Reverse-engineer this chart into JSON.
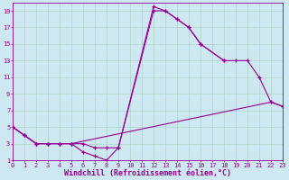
{
  "xlabel": "Windchill (Refroidissement éolien,°C)",
  "bg_color": "#cde8f0",
  "line_color": "#990099",
  "xmin": 0,
  "xmax": 23,
  "ymin": 1,
  "ymax": 20,
  "xticks": [
    0,
    1,
    2,
    3,
    4,
    5,
    6,
    7,
    8,
    9,
    10,
    11,
    12,
    13,
    14,
    15,
    16,
    17,
    18,
    19,
    20,
    21,
    22,
    23
  ],
  "yticks": [
    1,
    3,
    5,
    7,
    9,
    11,
    13,
    15,
    17,
    19
  ],
  "grid_color": "#b0d4c8",
  "tick_fontsize": 5.0,
  "label_fontsize": 6.0,
  "curve1_x": [
    0,
    1,
    2,
    3,
    4,
    5,
    6,
    7,
    8,
    9,
    12,
    13,
    14,
    15,
    16,
    18
  ],
  "curve1_y": [
    5,
    4,
    3,
    3,
    3,
    3,
    2,
    1.5,
    1,
    2.5,
    19.5,
    19,
    18,
    17,
    15,
    13
  ],
  "curve2_x": [
    0,
    1,
    2,
    3,
    4,
    5,
    6,
    7,
    8,
    9,
    12,
    13,
    14,
    15,
    16,
    18,
    19,
    20,
    21,
    22,
    23
  ],
  "curve2_y": [
    5,
    4,
    3,
    3,
    3,
    3,
    3,
    2.5,
    2.5,
    2.5,
    19,
    19,
    18,
    17,
    15,
    13,
    13,
    13,
    11,
    8,
    7.5
  ],
  "curve3_x": [
    0,
    1,
    2,
    3,
    4,
    5,
    22,
    23
  ],
  "curve3_y": [
    5,
    4,
    3,
    3,
    3,
    3,
    8,
    7.5
  ]
}
